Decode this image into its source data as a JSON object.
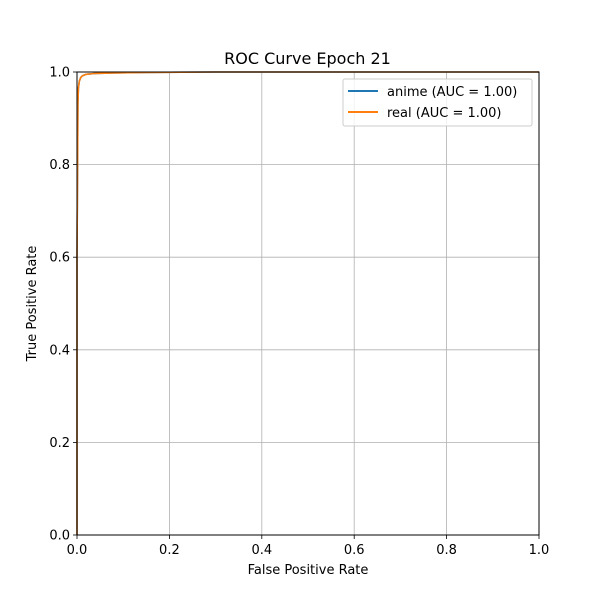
{
  "chart_data": {
    "type": "line",
    "title": "ROC Curve Epoch 21",
    "xlabel": "False Positive Rate",
    "ylabel": "True Positive Rate",
    "xlim": [
      0.0,
      1.0
    ],
    "ylim": [
      0.0,
      1.0
    ],
    "x_ticks": [
      "0.0",
      "0.2",
      "0.4",
      "0.6",
      "0.8",
      "1.0"
    ],
    "y_ticks": [
      "0.0",
      "0.2",
      "0.4",
      "0.6",
      "0.8",
      "1.0"
    ],
    "grid": true,
    "legend_position": "top-right",
    "series": [
      {
        "name": "anime (AUC = 1.00)",
        "color": "#1f77b4",
        "x": [
          0.0,
          0.0,
          0.002,
          0.003,
          0.005,
          0.008,
          0.012,
          0.02,
          0.04,
          0.08,
          0.15,
          0.3,
          0.6,
          1.0
        ],
        "y": [
          0.0,
          0.6,
          0.93,
          0.965,
          0.98,
          0.988,
          0.992,
          0.995,
          0.997,
          0.998,
          0.999,
          1.0,
          1.0,
          1.0
        ]
      },
      {
        "name": "real (AUC = 1.00)",
        "color": "#ff7f0e",
        "x": [
          0.0,
          0.0,
          0.002,
          0.003,
          0.005,
          0.008,
          0.012,
          0.02,
          0.04,
          0.08,
          0.15,
          0.3,
          0.6,
          1.0
        ],
        "y": [
          0.0,
          0.6,
          0.93,
          0.965,
          0.98,
          0.988,
          0.992,
          0.995,
          0.997,
          0.998,
          0.999,
          1.0,
          1.0,
          1.0
        ]
      }
    ]
  }
}
